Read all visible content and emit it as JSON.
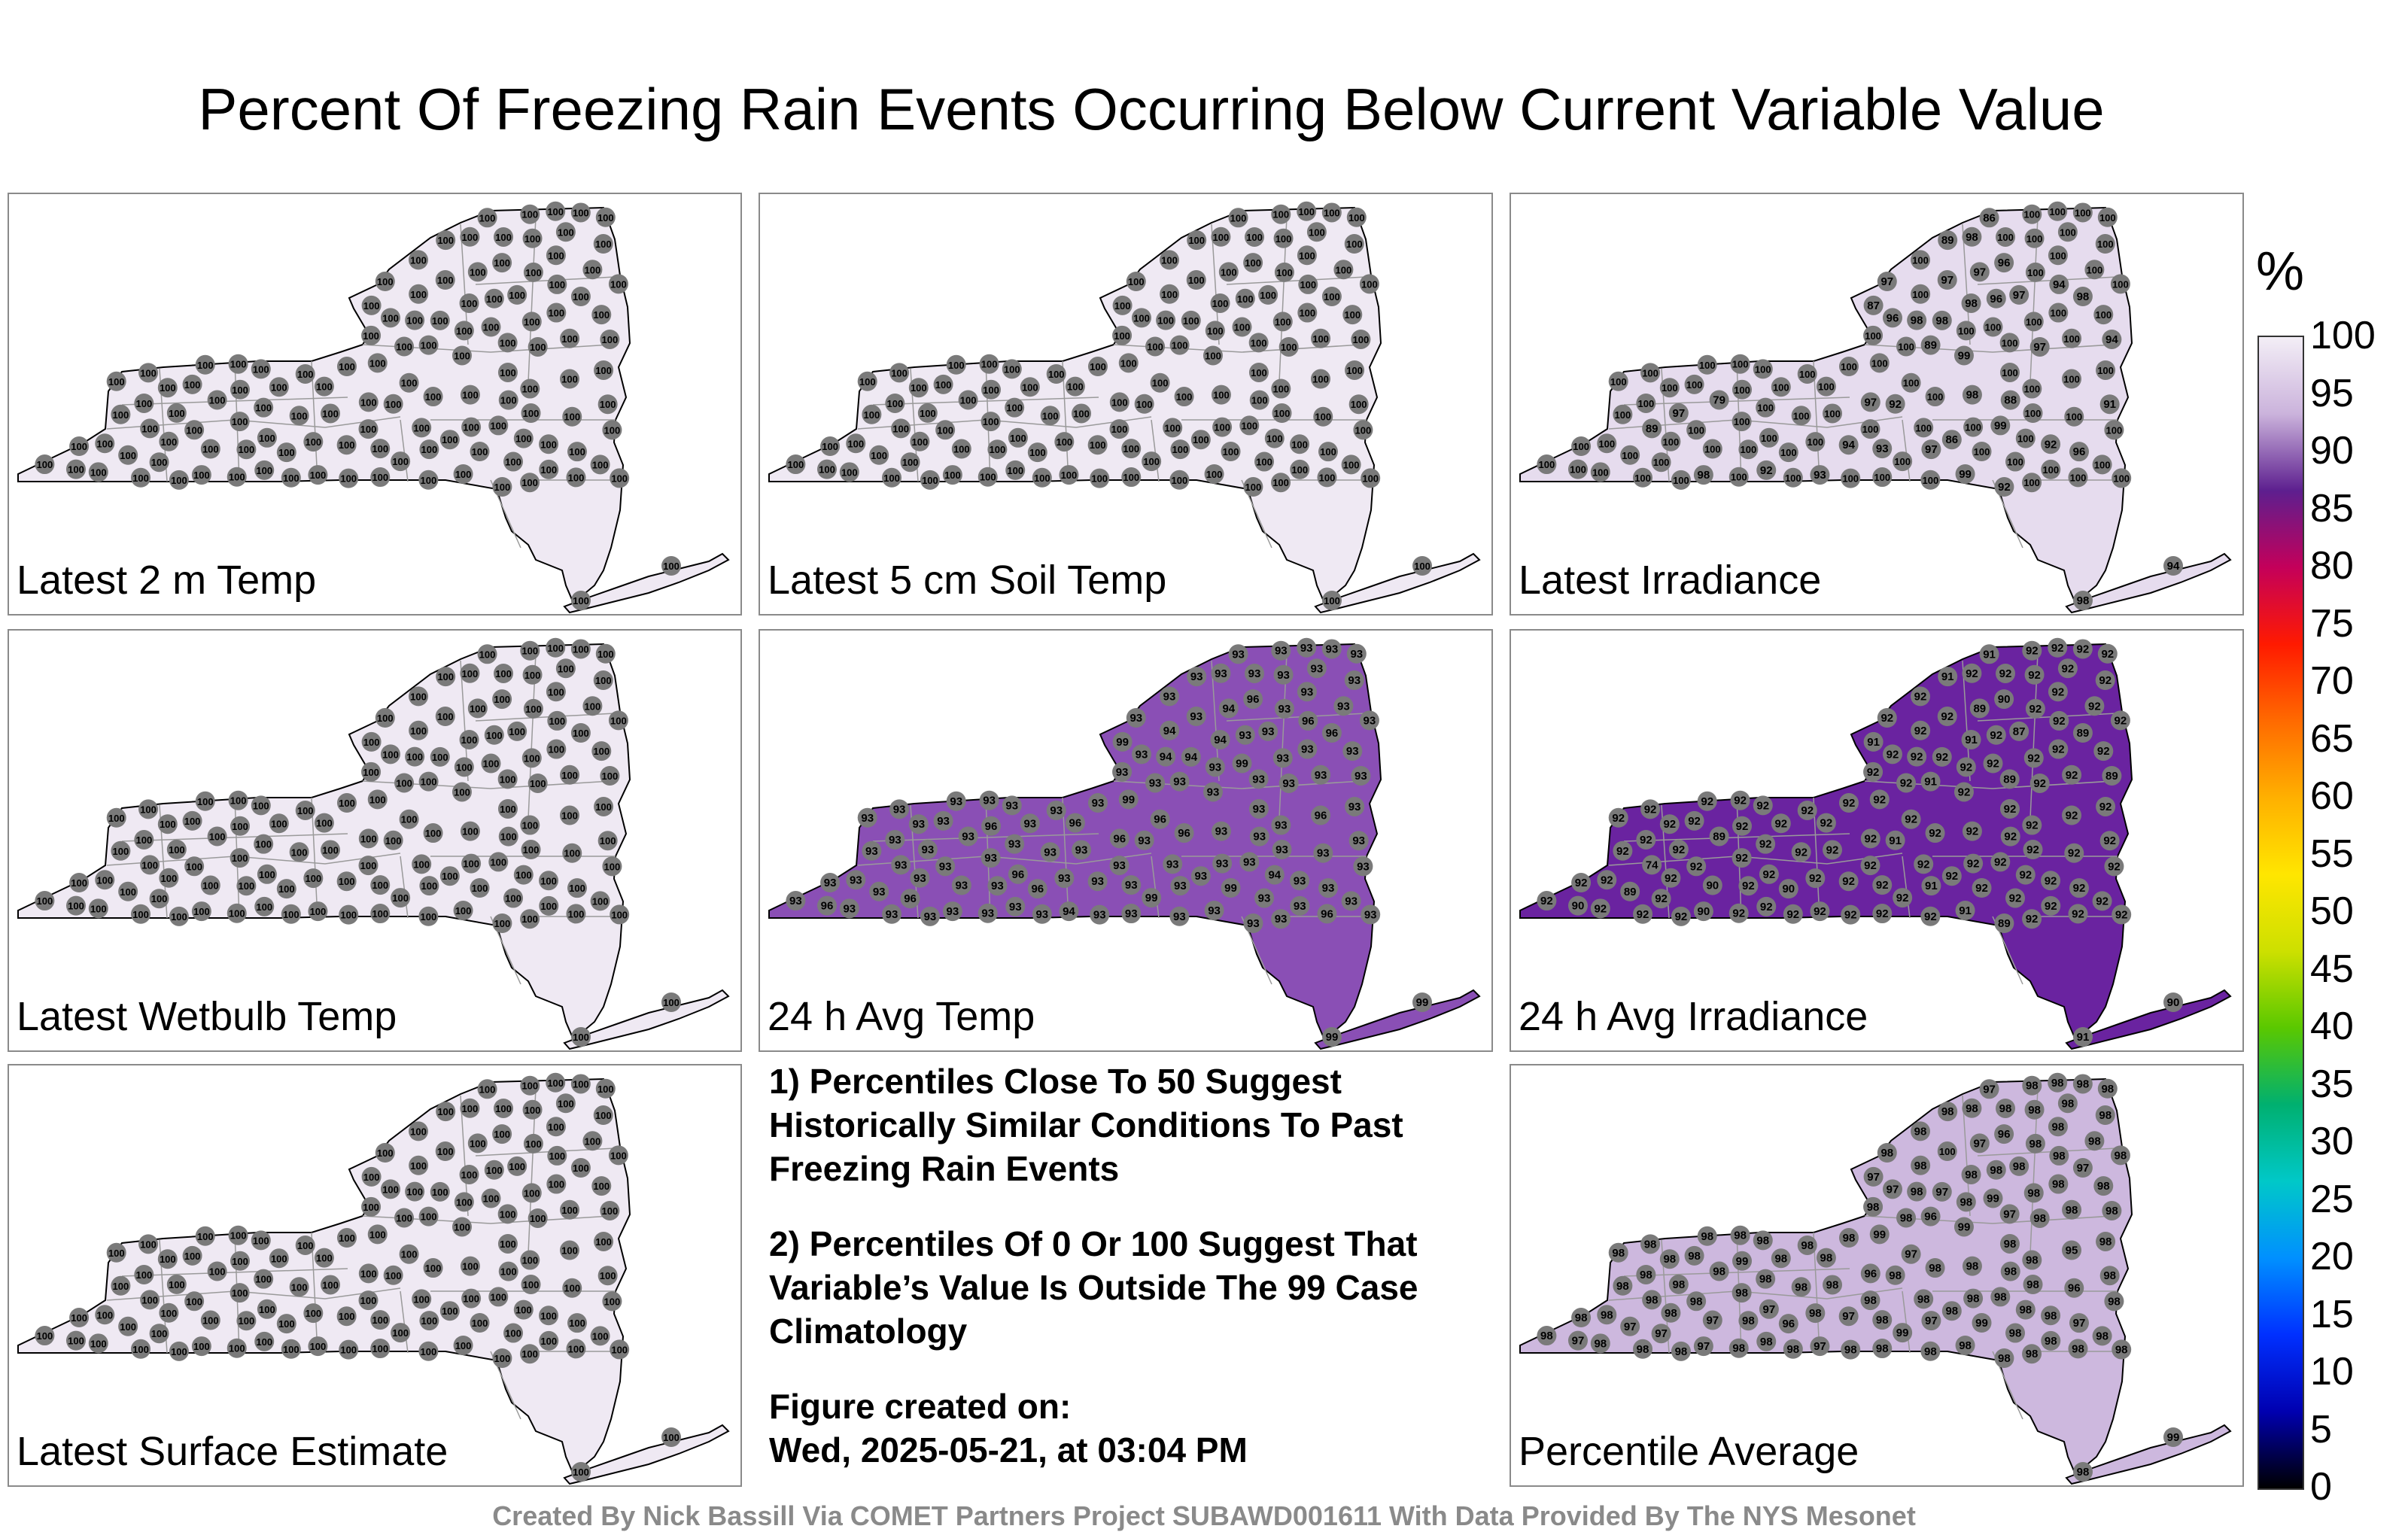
{
  "title": "Percent Of Freezing Rain Events Occurring Below Current Variable Value",
  "panels": [
    {
      "label": "Latest 2 m Temp",
      "fill": "#efe9f3",
      "values": [
        "100",
        "100",
        "100",
        "100",
        "100",
        "100",
        "100",
        "100",
        "100",
        "100",
        "100",
        "100",
        "100",
        "100",
        "100",
        "100",
        "100",
        "100",
        "100",
        "100",
        "100",
        "100",
        "100",
        "100",
        "100",
        "100",
        "100",
        "100",
        "100",
        "100",
        "100",
        "100",
        "100",
        "100",
        "100",
        "100",
        "100",
        "100",
        "100",
        "100",
        "100",
        "100",
        "100",
        "100",
        "100",
        "100",
        "100",
        "100",
        "100",
        "100",
        "100",
        "100",
        "100",
        "100",
        "100",
        "100",
        "100",
        "100",
        "100",
        "100",
        "100",
        "100",
        "100",
        "100",
        "100",
        "100",
        "100",
        "100",
        "100",
        "100",
        "100",
        "100",
        "100",
        "100",
        "100",
        "100",
        "100",
        "100",
        "100",
        "100",
        "100",
        "100",
        "100",
        "100",
        "100",
        "100",
        "100",
        "100",
        "100",
        "100",
        "100",
        "100",
        "100",
        "100",
        "100",
        "100",
        "100",
        "100",
        "100",
        "100",
        "100",
        "100",
        "100",
        "100",
        "100",
        "100",
        "100",
        "100",
        "100",
        "100",
        "100",
        "100",
        "100",
        "100",
        "100",
        "100",
        "100",
        "100",
        "100",
        "100",
        "100",
        "100",
        "100",
        "100",
        "100",
        "100"
      ]
    },
    {
      "label": "Latest 5 cm Soil Temp",
      "fill": "#efe9f3",
      "values": [
        "100",
        "100",
        "100",
        "100",
        "100",
        "100",
        "100",
        "100",
        "100",
        "100",
        "100",
        "100",
        "100",
        "100",
        "100",
        "100",
        "100",
        "100",
        "100",
        "100",
        "100",
        "100",
        "100",
        "100",
        "100",
        "100",
        "100",
        "100",
        "100",
        "100",
        "100",
        "100",
        "100",
        "100",
        "100",
        "100",
        "100",
        "100",
        "100",
        "100",
        "100",
        "100",
        "100",
        "100",
        "100",
        "100",
        "100",
        "100",
        "100",
        "100",
        "100",
        "100",
        "100",
        "100",
        "100",
        "100",
        "100",
        "100",
        "100",
        "100",
        "100",
        "100",
        "100",
        "100",
        "100",
        "100",
        "100",
        "100",
        "100",
        "100",
        "100",
        "100",
        "100",
        "100",
        "100",
        "100",
        "100",
        "100",
        "100",
        "100",
        "100",
        "100",
        "100",
        "100",
        "100",
        "100",
        "100",
        "100",
        "100",
        "100",
        "100",
        "100",
        "100",
        "100",
        "100",
        "100",
        "100",
        "100",
        "100",
        "100",
        "100",
        "100",
        "100",
        "100",
        "100",
        "100",
        "100",
        "100",
        "100",
        "100",
        "100",
        "100",
        "100",
        "100",
        "100",
        "100",
        "100",
        "100",
        "100",
        "100",
        "100",
        "100",
        "100",
        "100",
        "100",
        "100"
      ]
    },
    {
      "label": "Latest Irradiance",
      "fill": "#e6dcee",
      "values": [
        "100",
        "100",
        "100",
        "86",
        "98",
        "96",
        "89",
        "92",
        "96",
        "94",
        "97",
        "100",
        "97",
        "94",
        "89",
        "98",
        "97",
        "100",
        "92",
        "93",
        "100",
        "98",
        "88",
        "100",
        "97",
        "97",
        "100",
        "100",
        "92",
        "93",
        "89",
        "79",
        "91",
        "96",
        "98",
        "97",
        "99",
        "86",
        "87",
        "94",
        "92",
        "98",
        "100",
        "99",
        "100",
        "100",
        "100",
        "100",
        "100",
        "100",
        "100",
        "97",
        "100",
        "100",
        "100",
        "99",
        "100",
        "100",
        "100",
        "100",
        "100",
        "100",
        "100",
        "100",
        "100",
        "100",
        "100",
        "98",
        "98",
        "97",
        "100",
        "100",
        "100",
        "100",
        "100",
        "100",
        "100",
        "100",
        "100",
        "96",
        "100",
        "100",
        "100",
        "100",
        "100",
        "100",
        "100",
        "100",
        "100",
        "100",
        "100",
        "100",
        "100",
        "100",
        "100",
        "100",
        "100",
        "100",
        "100",
        "100",
        "100",
        "100",
        "100",
        "100",
        "100",
        "100",
        "100",
        "100",
        "100",
        "100",
        "100",
        "100",
        "100",
        "100",
        "100",
        "100",
        "100",
        "100",
        "100",
        "100",
        "100",
        "100",
        "100",
        "100",
        "94",
        "98"
      ]
    },
    {
      "label": "Latest Wetbulb Temp",
      "fill": "#efe9f3",
      "values": [
        "100",
        "100",
        "100",
        "100",
        "100",
        "100",
        "100",
        "100",
        "100",
        "100",
        "100",
        "100",
        "100",
        "100",
        "100",
        "100",
        "100",
        "100",
        "100",
        "100",
        "100",
        "100",
        "100",
        "100",
        "100",
        "100",
        "100",
        "100",
        "100",
        "100",
        "100",
        "100",
        "100",
        "100",
        "100",
        "100",
        "100",
        "100",
        "100",
        "100",
        "100",
        "100",
        "100",
        "100",
        "100",
        "100",
        "100",
        "100",
        "100",
        "100",
        "100",
        "100",
        "100",
        "100",
        "100",
        "100",
        "100",
        "100",
        "100",
        "100",
        "100",
        "100",
        "100",
        "100",
        "100",
        "100",
        "100",
        "100",
        "100",
        "100",
        "100",
        "100",
        "100",
        "100",
        "100",
        "100",
        "100",
        "100",
        "100",
        "100",
        "100",
        "100",
        "100",
        "100",
        "100",
        "100",
        "100",
        "100",
        "100",
        "100",
        "100",
        "100",
        "100",
        "100",
        "100",
        "100",
        "100",
        "100",
        "100",
        "100",
        "100",
        "100",
        "100",
        "100",
        "100",
        "100",
        "100",
        "100",
        "100",
        "100",
        "100",
        "100",
        "100",
        "100",
        "100",
        "100",
        "100",
        "100",
        "100",
        "100",
        "100",
        "100",
        "100",
        "100",
        "100",
        "100"
      ]
    },
    {
      "label": "24 h Avg Temp",
      "fill": "#8a4fb5",
      "values": [
        "94",
        "96",
        "93",
        "93",
        "94",
        "96",
        "93",
        "93",
        "93",
        "93",
        "94",
        "96",
        "93",
        "93",
        "93",
        "94",
        "93",
        "93",
        "93",
        "94",
        "96",
        "94",
        "93",
        "93",
        "93",
        "96",
        "96",
        "93",
        "93",
        "93",
        "93",
        "93",
        "93",
        "93",
        "96",
        "93",
        "93",
        "93",
        "99",
        "96",
        "93",
        "93",
        "93",
        "93",
        "96",
        "94",
        "99",
        "96",
        "96",
        "99",
        "99",
        "93",
        "93",
        "93",
        "93",
        "93",
        "93",
        "93",
        "93",
        "93",
        "96",
        "99",
        "96",
        "96",
        "93",
        "93",
        "93",
        "93",
        "93",
        "93",
        "93",
        "93",
        "93",
        "93",
        "93",
        "93",
        "93",
        "93",
        "93",
        "93",
        "93",
        "93",
        "93",
        "93",
        "93",
        "93",
        "93",
        "93",
        "93",
        "93",
        "93",
        "93",
        "93",
        "93",
        "93",
        "93",
        "93",
        "93",
        "93",
        "93",
        "93",
        "93",
        "93",
        "93",
        "93",
        "93",
        "93",
        "93",
        "93",
        "93",
        "93",
        "93",
        "93",
        "93",
        "93",
        "93",
        "93",
        "93",
        "93",
        "93",
        "93",
        "93",
        "93",
        "93",
        "99",
        "99"
      ]
    },
    {
      "label": "24 h Avg Irradiance",
      "fill": "#6a23a0",
      "values": [
        "92",
        "92",
        "89",
        "92",
        "91",
        "90",
        "74",
        "92",
        "92",
        "89",
        "89",
        "90",
        "87",
        "92",
        "91",
        "92",
        "92",
        "89",
        "91",
        "92",
        "92",
        "92",
        "92",
        "92",
        "91",
        "92",
        "90",
        "90",
        "89",
        "92",
        "91",
        "89",
        "92",
        "92",
        "89",
        "92",
        "92",
        "91",
        "91",
        "92",
        "92",
        "90",
        "92",
        "91",
        "92",
        "92",
        "92",
        "92",
        "92",
        "92",
        "92",
        "92",
        "92",
        "92",
        "92",
        "92",
        "92",
        "92",
        "92",
        "92",
        "92",
        "92",
        "92",
        "92",
        "92",
        "92",
        "92",
        "92",
        "92",
        "92",
        "92",
        "92",
        "92",
        "92",
        "92",
        "92",
        "92",
        "92",
        "92",
        "92",
        "92",
        "92",
        "92",
        "92",
        "92",
        "92",
        "92",
        "92",
        "92",
        "92",
        "92",
        "92",
        "92",
        "92",
        "92",
        "92",
        "92",
        "92",
        "92",
        "92",
        "92",
        "92",
        "92",
        "92",
        "92",
        "92",
        "92",
        "92",
        "92",
        "92",
        "92",
        "92",
        "92",
        "92",
        "92",
        "92",
        "92",
        "92",
        "92",
        "92",
        "92",
        "92",
        "92",
        "92",
        "90",
        "91"
      ]
    },
    {
      "label": "Latest Surface Estimate",
      "fill": "#efe9f3",
      "values": [
        "100",
        "100",
        "100",
        "100",
        "100",
        "100",
        "100",
        "100",
        "100",
        "100",
        "100",
        "100",
        "100",
        "100",
        "100",
        "100",
        "100",
        "100",
        "100",
        "100",
        "100",
        "100",
        "100",
        "100",
        "100",
        "100",
        "100",
        "100",
        "100",
        "100",
        "100",
        "100",
        "100",
        "100",
        "100",
        "100",
        "100",
        "100",
        "100",
        "100",
        "100",
        "100",
        "100",
        "100",
        "100",
        "100",
        "100",
        "100",
        "100",
        "100",
        "100",
        "100",
        "100",
        "100",
        "100",
        "100",
        "100",
        "100",
        "100",
        "100",
        "100",
        "100",
        "100",
        "100",
        "100",
        "100",
        "100",
        "100",
        "100",
        "100",
        "100",
        "100",
        "100",
        "100",
        "100",
        "100",
        "100",
        "100",
        "100",
        "100",
        "100",
        "100",
        "100",
        "100",
        "100",
        "100",
        "100",
        "100",
        "100",
        "100",
        "100",
        "100",
        "100",
        "100",
        "100",
        "100",
        "100",
        "100",
        "100",
        "100",
        "100",
        "100",
        "100",
        "100",
        "100",
        "100",
        "100",
        "100",
        "100",
        "100",
        "100",
        "100",
        "100",
        "100",
        "100",
        "100",
        "100",
        "100",
        "100",
        "100",
        "100",
        "100",
        "100",
        "100",
        "100",
        "100"
      ]
    },
    {
      "label": "Percentile Average",
      "fill": "#cdb8de",
      "values": [
        "98",
        "98",
        "97",
        "98",
        "98",
        "96",
        "98",
        "98",
        "97",
        "98",
        "97",
        "96",
        "98",
        "97",
        "98",
        "97",
        "100",
        "97",
        "98",
        "97",
        "95",
        "98",
        "98",
        "98",
        "97",
        "96",
        "97",
        "97",
        "98",
        "98",
        "96",
        "98",
        "98",
        "97",
        "97",
        "98",
        "99",
        "97",
        "97",
        "98",
        "98",
        "97",
        "96",
        "98",
        "97",
        "98",
        "99",
        "98",
        "97",
        "99",
        "99",
        "98",
        "98",
        "98",
        "98",
        "98",
        "98",
        "98",
        "98",
        "98",
        "99",
        "99",
        "97",
        "98",
        "98",
        "98",
        "98",
        "98",
        "98",
        "98",
        "98",
        "98",
        "98",
        "98",
        "98",
        "98",
        "98",
        "98",
        "98",
        "98",
        "98",
        "98",
        "98",
        "98",
        "98",
        "98",
        "98",
        "98",
        "98",
        "98",
        "98",
        "98",
        "98",
        "98",
        "98",
        "98",
        "98",
        "98",
        "98",
        "98",
        "98",
        "98",
        "98",
        "98",
        "98",
        "98",
        "98",
        "98",
        "98",
        "98",
        "98",
        "98",
        "98",
        "98",
        "98",
        "98",
        "98",
        "98",
        "98",
        "98",
        "98",
        "98",
        "98",
        "98",
        "99",
        "98"
      ]
    }
  ],
  "notes": {
    "note1": "1) Percentiles Close To 50 Suggest Historically Similar Conditions To Past Freezing Rain Events",
    "note2": "2) Percentiles Of 0 Or 100 Suggest That Variable’s Value Is Outside The 99 Case Climatology",
    "created_label": "Figure created on:",
    "created_date": "Wed, 2025-05-21, at 03:04 PM"
  },
  "colorbar": {
    "unit": "%",
    "ticks": [
      "100",
      "95",
      "90",
      "85",
      "80",
      "75",
      "70",
      "65",
      "60",
      "55",
      "50",
      "45",
      "40",
      "35",
      "30",
      "25",
      "20",
      "15",
      "10",
      "5",
      "0"
    ],
    "colors": [
      "#f3eef6",
      "#cbb3dc",
      "#5d1f8f",
      "#c4005a",
      "#ff1a00",
      "#ff6a00",
      "#ffb000",
      "#ffe600",
      "#cde000",
      "#5ac800",
      "#00b070",
      "#00c8c8",
      "#0090ff",
      "#0030ff",
      "#0000b0",
      "#000000"
    ]
  },
  "footer": "Created By Nick Bassill Via COMET Partners Project SUBAWD001611 With Data Provided By The NYS Mesonet"
}
